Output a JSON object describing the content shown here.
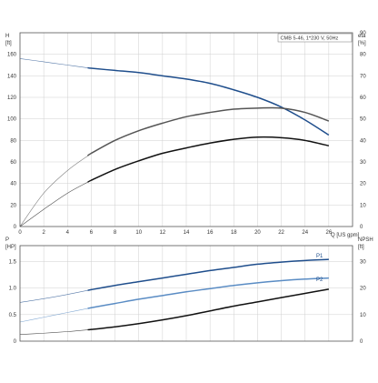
{
  "title": "CMB 5-46, 1*230 V, 50Hz",
  "colors": {
    "head": "#1f4e8c",
    "efficiency": "#555555",
    "performance": "#111111",
    "p1": "#1f4e8c",
    "p2": "#5a8cc4",
    "npsh": "#111111",
    "extension": "#8a8a8a",
    "grid": "#cfcfcf"
  },
  "chart_data": [
    {
      "type": "line",
      "x_label": "Q [US gpm]",
      "y_label_left": "H",
      "y_unit_left": "[ft]",
      "y_label_right": "eta",
      "y_unit_right": "[%]",
      "xlim": [
        0,
        28
      ],
      "ylim_left": [
        0,
        180
      ],
      "ylim_right": [
        0,
        90
      ],
      "x_ticks": [
        0,
        2,
        4,
        6,
        8,
        10,
        12,
        14,
        16,
        18,
        20,
        22,
        24,
        26
      ],
      "y_ticks_left": [
        0,
        20,
        40,
        60,
        80,
        100,
        120,
        140,
        160
      ],
      "y_ticks_right": [
        0,
        10,
        20,
        30,
        40,
        50,
        60,
        70,
        80,
        90
      ],
      "grid": true,
      "series": [
        {
          "key": "head",
          "axis": "left",
          "points": [
            [
              0,
              156
            ],
            [
              2,
              153
            ],
            [
              4,
              150
            ],
            [
              6,
              147
            ],
            [
              8,
              145
            ],
            [
              10,
              143
            ],
            [
              12,
              140
            ],
            [
              14,
              137
            ],
            [
              16,
              133
            ],
            [
              18,
              127
            ],
            [
              20,
              120
            ],
            [
              22,
              111
            ],
            [
              24,
              99
            ],
            [
              26,
              85
            ]
          ],
          "solid_from": 5.7
        },
        {
          "key": "efficiency",
          "axis": "right",
          "points": [
            [
              0,
              0
            ],
            [
              2,
              15.5
            ],
            [
              4,
              26
            ],
            [
              6,
              34
            ],
            [
              8,
              40
            ],
            [
              10,
              44.5
            ],
            [
              12,
              48
            ],
            [
              14,
              51
            ],
            [
              16,
              53
            ],
            [
              18,
              54.5
            ],
            [
              20,
              55
            ],
            [
              22,
              55
            ],
            [
              24,
              53
            ],
            [
              26,
              49
            ]
          ],
          "solid_from": 5.7
        },
        {
          "key": "performance",
          "axis": "left",
          "points": [
            [
              0,
              0
            ],
            [
              2,
              16
            ],
            [
              4,
              31
            ],
            [
              6,
              43
            ],
            [
              8,
              53
            ],
            [
              10,
              61
            ],
            [
              12,
              68
            ],
            [
              14,
              73
            ],
            [
              16,
              77.5
            ],
            [
              18,
              81
            ],
            [
              20,
              83
            ],
            [
              22,
              82.5
            ],
            [
              24,
              80
            ],
            [
              26,
              75
            ]
          ],
          "solid_from": 5.7
        }
      ]
    },
    {
      "type": "line",
      "x_label": "",
      "y_label_left": "P",
      "y_unit_left": "[HP]",
      "y_label_right": "NPSH",
      "y_unit_right": "[ft]",
      "xlim": [
        0,
        28
      ],
      "ylim_left": [
        0,
        1.8
      ],
      "ylim_right": [
        0,
        36
      ],
      "y_ticks_left": [
        0,
        0.5,
        1.0,
        1.5
      ],
      "y_tick_labels_left": [
        "0",
        "0.5",
        "1.0",
        "1.5"
      ],
      "y_ticks_right": [
        0,
        10,
        20,
        30
      ],
      "grid": true,
      "series": [
        {
          "key": "p1",
          "name": "P1",
          "axis": "left",
          "points": [
            [
              0,
              0.73
            ],
            [
              2,
              0.8
            ],
            [
              4,
              0.88
            ],
            [
              6,
              0.97
            ],
            [
              8,
              1.05
            ],
            [
              10,
              1.12
            ],
            [
              12,
              1.19
            ],
            [
              14,
              1.26
            ],
            [
              16,
              1.33
            ],
            [
              18,
              1.39
            ],
            [
              20,
              1.45
            ],
            [
              22,
              1.49
            ],
            [
              24,
              1.52
            ],
            [
              26,
              1.54
            ]
          ],
          "solid_from": 5.7
        },
        {
          "key": "p2",
          "name": "P2",
          "axis": "left",
          "points": [
            [
              0,
              0.36
            ],
            [
              2,
              0.45
            ],
            [
              4,
              0.54
            ],
            [
              6,
              0.63
            ],
            [
              8,
              0.71
            ],
            [
              10,
              0.79
            ],
            [
              12,
              0.86
            ],
            [
              14,
              0.93
            ],
            [
              16,
              0.99
            ],
            [
              18,
              1.05
            ],
            [
              20,
              1.1
            ],
            [
              22,
              1.14
            ],
            [
              24,
              1.17
            ],
            [
              26,
              1.19
            ]
          ],
          "solid_from": 5.7
        },
        {
          "key": "npsh",
          "axis": "right",
          "points": [
            [
              0,
              2.5
            ],
            [
              2,
              3
            ],
            [
              4,
              3.6
            ],
            [
              6,
              4.4
            ],
            [
              8,
              5.4
            ],
            [
              10,
              6.6
            ],
            [
              12,
              8.0
            ],
            [
              14,
              9.6
            ],
            [
              16,
              11.4
            ],
            [
              18,
              13.2
            ],
            [
              20,
              14.8
            ],
            [
              22,
              16.4
            ],
            [
              24,
              18
            ],
            [
              26,
              19.6
            ]
          ],
          "solid_from": 5.7
        }
      ]
    }
  ]
}
